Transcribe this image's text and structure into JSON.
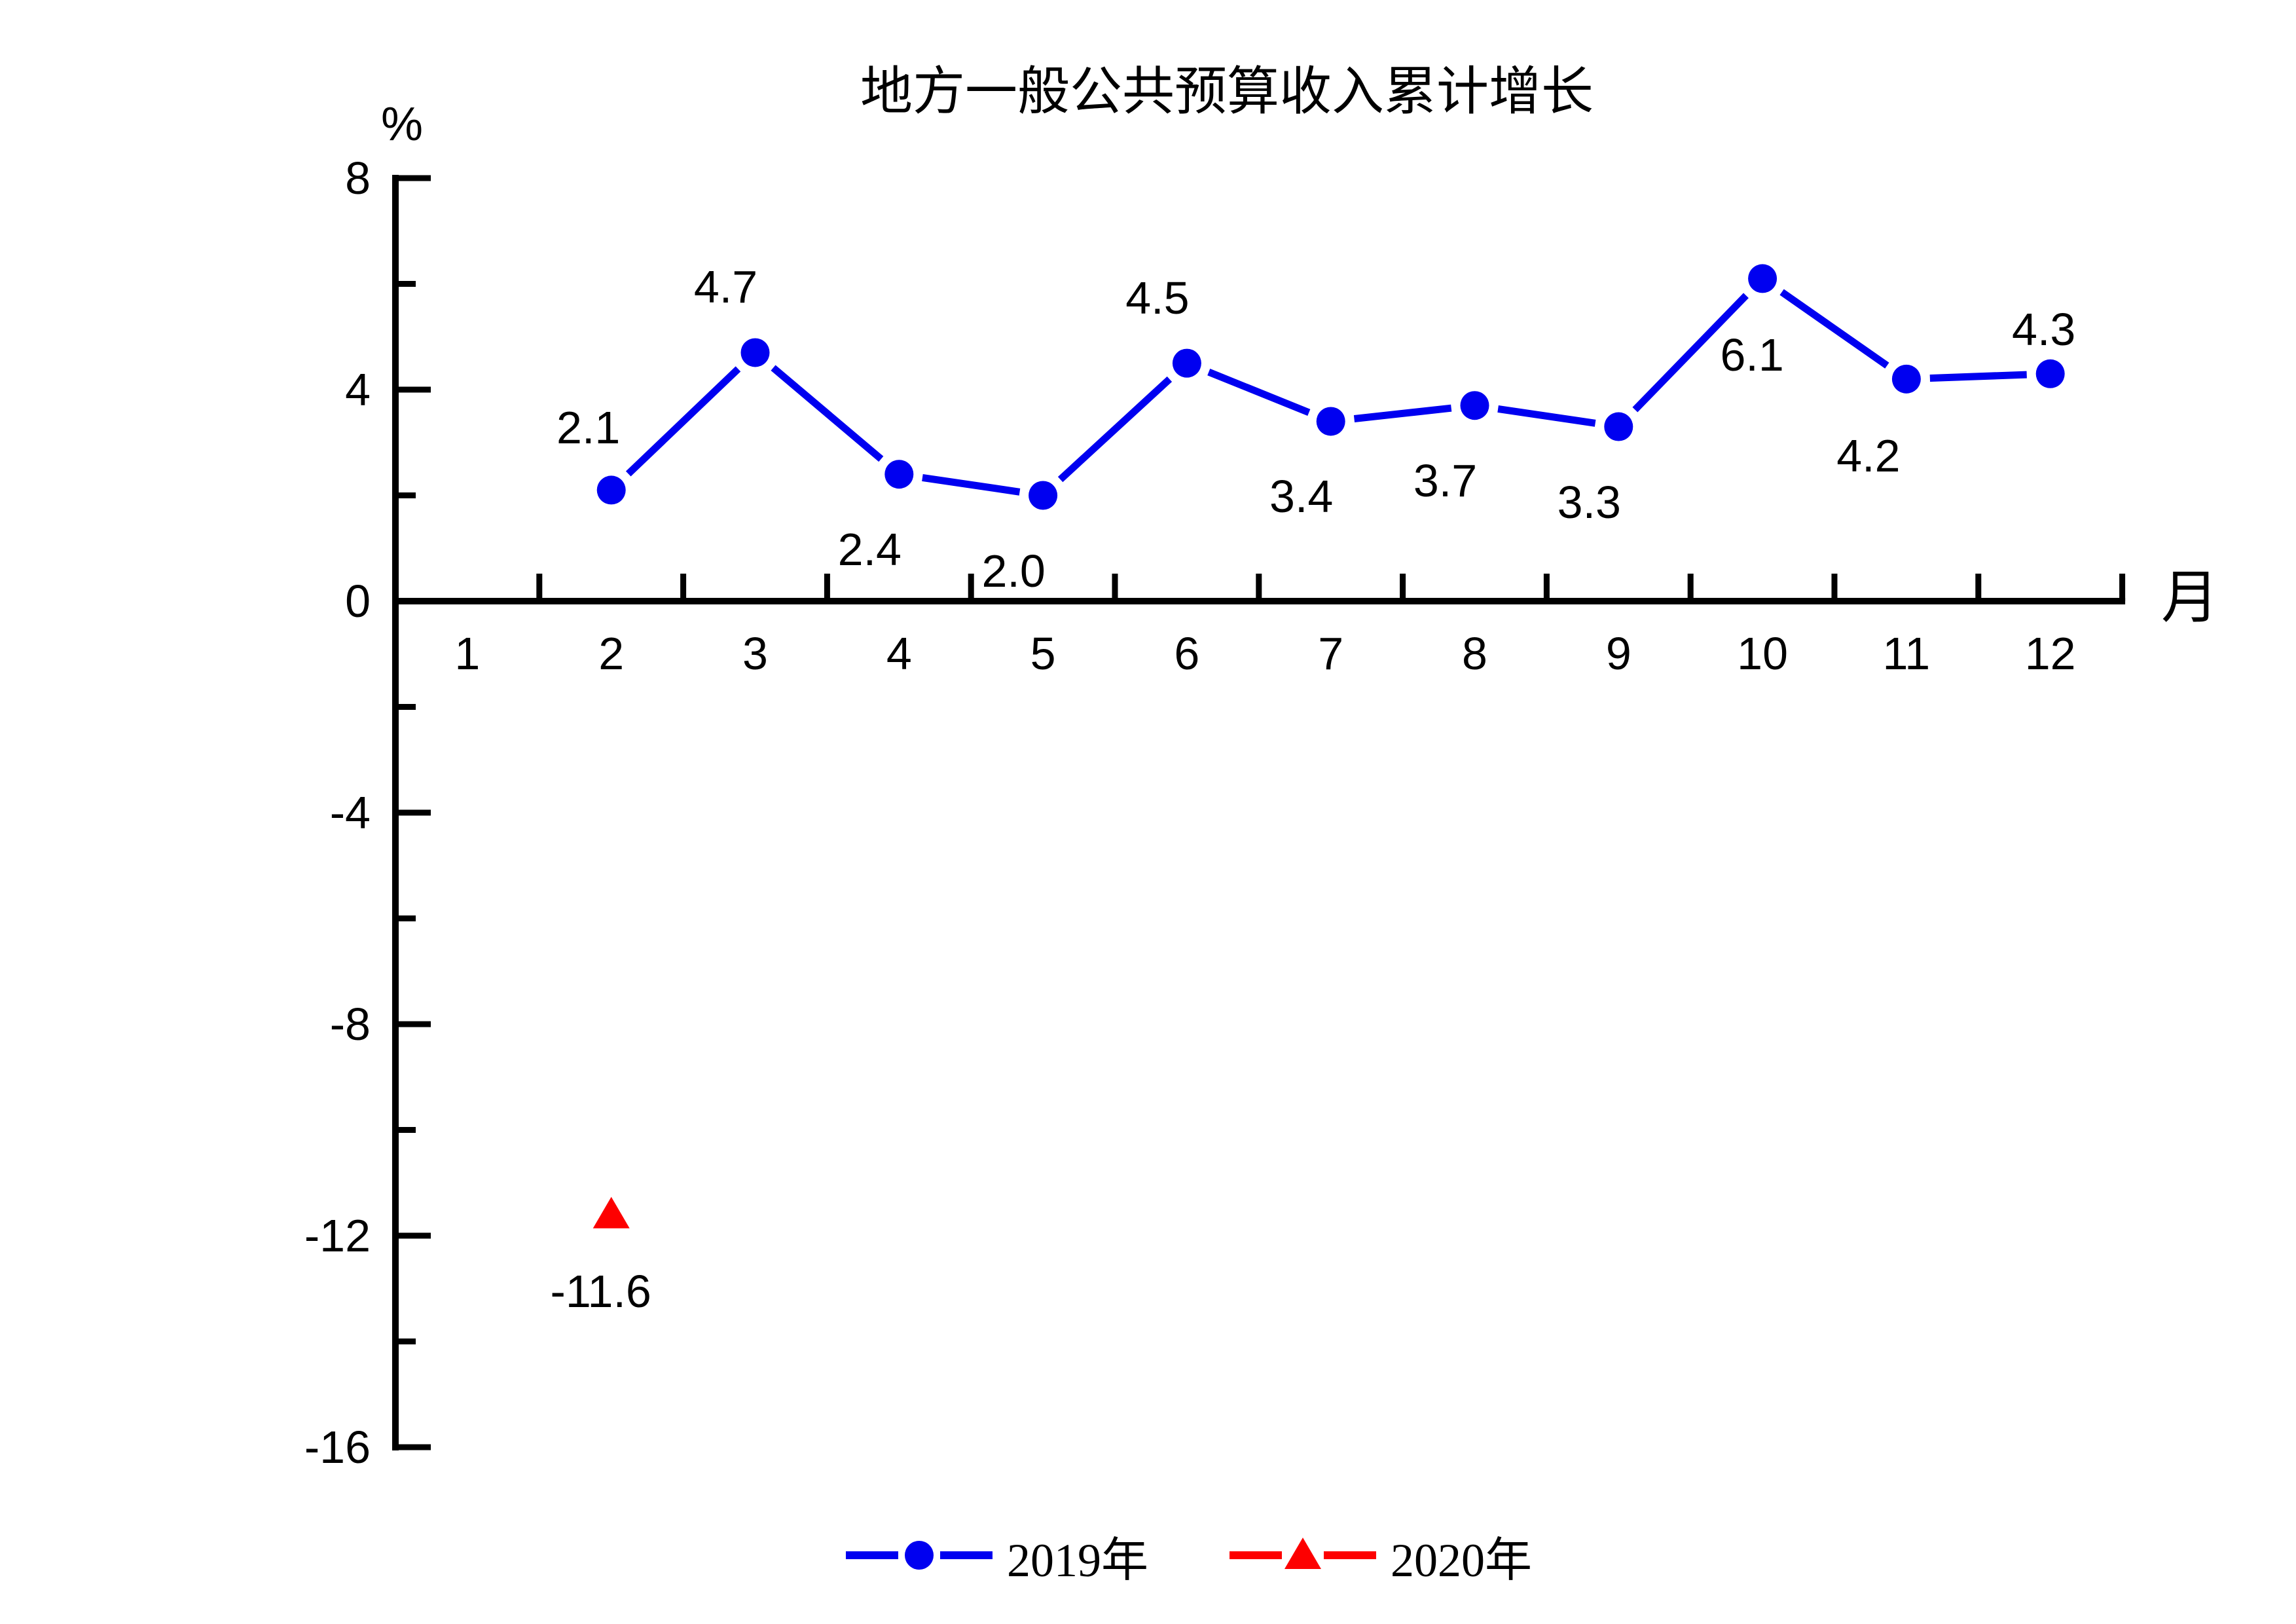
{
  "chart_data": {
    "type": "line",
    "title": "地方一般公共预算收入累计增长",
    "xlabel": "月",
    "ylabel": "%",
    "xlim": [
      0.5,
      12.5
    ],
    "ylim": [
      -16,
      8
    ],
    "x_tick_labels": [
      "1",
      "2",
      "3",
      "4",
      "5",
      "6",
      "7",
      "8",
      "9",
      "10",
      "11",
      "12"
    ],
    "y_major_ticks": [
      8,
      4,
      0,
      -4,
      -8,
      -12,
      -16
    ],
    "y_minor_ticks": [
      6,
      2,
      -2,
      -6,
      -10,
      -14
    ],
    "grid": false,
    "legend_position": "bottom-center",
    "axis_color": "#000000",
    "background_color": "#ffffff",
    "series": [
      {
        "name": "2019年",
        "color": "#0000f0",
        "marker": "circle",
        "line": true,
        "months": [
          2,
          3,
          4,
          5,
          6,
          7,
          8,
          9,
          10,
          11,
          12
        ],
        "values": [
          2.1,
          4.7,
          2.4,
          2.0,
          4.5,
          3.4,
          3.7,
          3.3,
          6.1,
          4.2,
          4.3
        ],
        "label_positions": [
          "above-left",
          "above",
          "below",
          "below",
          "above",
          "below",
          "below",
          "below",
          "below-center",
          "below-left",
          "above-tight"
        ]
      },
      {
        "name": "2020年",
        "color": "#fd0000",
        "marker": "triangle",
        "line": false,
        "months": [
          2
        ],
        "values": [
          -11.6
        ],
        "label_positions": [
          "below-center"
        ]
      }
    ]
  }
}
